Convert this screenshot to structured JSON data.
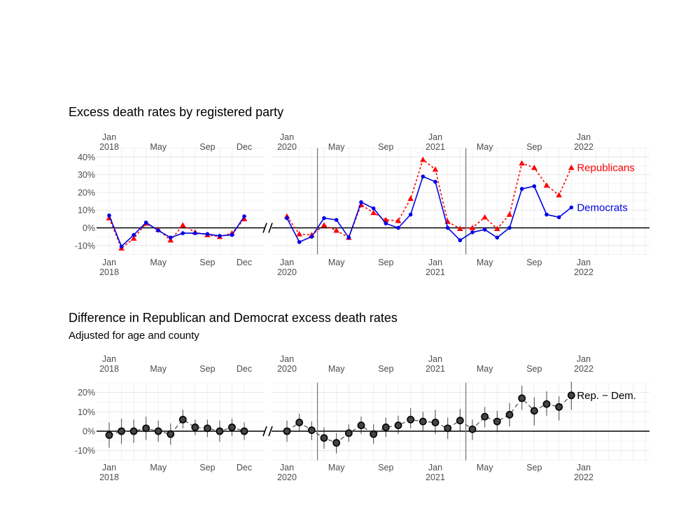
{
  "chart_data": [
    {
      "type": "line",
      "title": "Excess death rates by registered party",
      "y_ticks": [
        "-10%",
        "0%",
        "10%",
        "20%",
        "30%",
        "40%"
      ],
      "ylim": [
        -0.15,
        0.41
      ],
      "x_ticks_left": [
        {
          "month": "2018-01",
          "top": "Jan",
          "bottom": "2018"
        },
        {
          "month": "2018-05",
          "top": "May",
          "bottom": ""
        },
        {
          "month": "2018-09",
          "top": "Sep",
          "bottom": ""
        },
        {
          "month": "2018-12",
          "top": "Dec",
          "bottom": ""
        }
      ],
      "x_ticks_right": [
        {
          "month": "2020-01",
          "top": "Jan",
          "bottom": "2020"
        },
        {
          "month": "2020-05",
          "top": "May",
          "bottom": ""
        },
        {
          "month": "2020-09",
          "top": "Sep",
          "bottom": ""
        },
        {
          "month": "2021-01",
          "top": "Jan",
          "bottom": "2021"
        },
        {
          "month": "2021-05",
          "top": "May",
          "bottom": ""
        },
        {
          "month": "2021-09",
          "top": "Sep",
          "bottom": ""
        },
        {
          "month": "2022-01",
          "top": "Jan",
          "bottom": "2022"
        }
      ],
      "vertical_lines": [
        "2020-03-15",
        "2021-03-15"
      ],
      "series": [
        {
          "name": "Republicans",
          "color": "#ff0000",
          "marker": "triangle",
          "line_style": "dotted",
          "left_months": [
            "2018-01",
            "2018-02",
            "2018-03",
            "2018-04",
            "2018-05",
            "2018-06",
            "2018-07",
            "2018-08",
            "2018-09",
            "2018-10",
            "2018-11",
            "2018-12"
          ],
          "left_values": [
            0.055,
            -0.115,
            -0.06,
            0.025,
            -0.01,
            -0.07,
            0.015,
            -0.025,
            -0.04,
            -0.05,
            -0.03,
            0.05
          ],
          "right_months": [
            "2020-01",
            "2020-02",
            "2020-03",
            "2020-04",
            "2020-05",
            "2020-06",
            "2020-07",
            "2020-08",
            "2020-09",
            "2020-10",
            "2020-11",
            "2020-12",
            "2021-01",
            "2021-02",
            "2021-03",
            "2021-04",
            "2021-05",
            "2021-06",
            "2021-07",
            "2021-08",
            "2021-09",
            "2021-10",
            "2021-11",
            "2021-12"
          ],
          "right_values": [
            0.065,
            -0.035,
            -0.04,
            0.015,
            -0.015,
            -0.055,
            0.13,
            0.085,
            0.045,
            0.04,
            0.165,
            0.385,
            0.33,
            0.035,
            -0.005,
            0.0,
            0.06,
            -0.005,
            0.075,
            0.365,
            0.34,
            0.24,
            0.185,
            0.34
          ]
        },
        {
          "name": "Democrats",
          "color": "#0000e6",
          "marker": "circle",
          "line_style": "solid",
          "left_months": [
            "2018-01",
            "2018-02",
            "2018-03",
            "2018-04",
            "2018-05",
            "2018-06",
            "2018-07",
            "2018-08",
            "2018-09",
            "2018-10",
            "2018-11",
            "2018-12"
          ],
          "left_values": [
            0.07,
            -0.105,
            -0.04,
            0.03,
            -0.015,
            -0.055,
            -0.03,
            -0.03,
            -0.035,
            -0.045,
            -0.04,
            0.065
          ],
          "right_months": [
            "2020-01",
            "2020-02",
            "2020-03",
            "2020-04",
            "2020-05",
            "2020-06",
            "2020-07",
            "2020-08",
            "2020-09",
            "2020-10",
            "2020-11",
            "2020-12",
            "2021-01",
            "2021-02",
            "2021-03",
            "2021-04",
            "2021-05",
            "2021-06",
            "2021-07",
            "2021-08",
            "2021-09",
            "2021-10",
            "2021-11",
            "2021-12"
          ],
          "right_values": [
            0.055,
            -0.08,
            -0.05,
            0.055,
            0.045,
            -0.055,
            0.145,
            0.11,
            0.025,
            0.0,
            0.075,
            0.29,
            0.26,
            0.0,
            -0.07,
            -0.025,
            -0.01,
            -0.055,
            0.0,
            0.22,
            0.235,
            0.075,
            0.06,
            0.115
          ]
        }
      ]
    },
    {
      "type": "scatter",
      "title": "Difference in Republican and Democrat excess death rates",
      "subtitle": "Adjusted for age and county",
      "y_ticks": [
        "-10%",
        "0%",
        "10%",
        "20%"
      ],
      "ylim": [
        -0.14,
        0.245
      ],
      "x_ticks_left": [
        {
          "month": "2018-01",
          "top": "Jan",
          "bottom": "2018"
        },
        {
          "month": "2018-05",
          "top": "May",
          "bottom": ""
        },
        {
          "month": "2018-09",
          "top": "Sep",
          "bottom": ""
        },
        {
          "month": "2018-12",
          "top": "Dec",
          "bottom": ""
        }
      ],
      "x_ticks_right": [
        {
          "month": "2020-01",
          "top": "Jan",
          "bottom": "2020"
        },
        {
          "month": "2020-05",
          "top": "May",
          "bottom": ""
        },
        {
          "month": "2020-09",
          "top": "Sep",
          "bottom": ""
        },
        {
          "month": "2021-01",
          "top": "Jan",
          "bottom": "2021"
        },
        {
          "month": "2021-05",
          "top": "May",
          "bottom": ""
        },
        {
          "month": "2021-09",
          "top": "Sep",
          "bottom": ""
        },
        {
          "month": "2022-01",
          "top": "Jan",
          "bottom": "2022"
        }
      ],
      "vertical_lines": [
        "2020-03-15",
        "2021-03-15"
      ],
      "series": [
        {
          "name": "Rep. − Dem.",
          "color": "#000000",
          "marker": "circle",
          "line_style": "dashed",
          "left_months": [
            "2018-01",
            "2018-02",
            "2018-03",
            "2018-04",
            "2018-05",
            "2018-06",
            "2018-07",
            "2018-08",
            "2018-09",
            "2018-10",
            "2018-11",
            "2018-12"
          ],
          "left_values": [
            -0.02,
            0.0,
            0.0,
            0.015,
            0.0,
            -0.015,
            0.06,
            0.02,
            0.015,
            0.0,
            0.02,
            0.0
          ],
          "left_low": [
            -0.085,
            -0.065,
            -0.06,
            -0.045,
            -0.055,
            -0.07,
            0.015,
            -0.02,
            -0.03,
            -0.055,
            -0.025,
            -0.045
          ],
          "left_high": [
            0.045,
            0.065,
            0.06,
            0.075,
            0.055,
            0.04,
            0.11,
            0.06,
            0.06,
            0.055,
            0.065,
            0.045
          ],
          "right_months": [
            "2020-01",
            "2020-02",
            "2020-03",
            "2020-04",
            "2020-05",
            "2020-06",
            "2020-07",
            "2020-08",
            "2020-09",
            "2020-10",
            "2020-11",
            "2020-12",
            "2021-01",
            "2021-02",
            "2021-03",
            "2021-04",
            "2021-05",
            "2021-06",
            "2021-07",
            "2021-08",
            "2021-09",
            "2021-10",
            "2021-11",
            "2021-12"
          ],
          "right_values": [
            0.0,
            0.045,
            0.005,
            -0.035,
            -0.06,
            -0.01,
            0.03,
            -0.015,
            0.02,
            0.03,
            0.06,
            0.05,
            0.045,
            0.015,
            0.055,
            0.01,
            0.075,
            0.05,
            0.085,
            0.17,
            0.105,
            0.14,
            0.125,
            0.185
          ],
          "right_low": [
            -0.055,
            0.0,
            -0.045,
            -0.09,
            -0.115,
            -0.055,
            -0.015,
            -0.065,
            -0.03,
            -0.015,
            0.015,
            0.0,
            -0.015,
            -0.04,
            0.0,
            -0.045,
            0.02,
            -0.005,
            0.025,
            0.11,
            0.03,
            0.08,
            0.055,
            0.11
          ],
          "right_high": [
            0.055,
            0.09,
            0.05,
            0.02,
            -0.01,
            0.035,
            0.075,
            0.035,
            0.07,
            0.08,
            0.12,
            0.1,
            0.11,
            0.07,
            0.115,
            0.06,
            0.125,
            0.105,
            0.145,
            0.235,
            0.175,
            0.205,
            0.18,
            0.255
          ]
        }
      ]
    }
  ]
}
